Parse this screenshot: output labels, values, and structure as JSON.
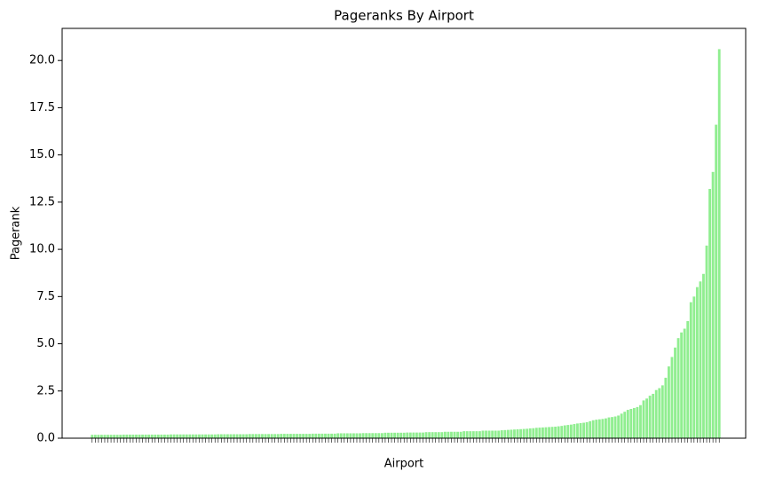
{
  "chart_data": {
    "type": "bar",
    "title": "Pageranks By Airport",
    "x_label": "Airport",
    "y_label": "Pagerank",
    "color": "#90ee90",
    "categories": [
      null,
      null,
      null,
      null,
      null,
      null,
      null,
      null,
      null,
      null,
      null,
      null,
      null,
      null,
      null,
      null,
      null,
      null,
      null,
      null,
      null,
      null,
      null,
      null,
      null,
      null,
      null,
      null,
      null,
      null,
      null,
      null,
      null,
      null,
      null,
      null,
      null,
      null,
      null,
      null,
      null,
      null,
      null,
      null,
      null,
      null,
      null,
      null,
      null,
      null,
      null,
      null,
      null,
      null,
      null,
      null,
      null,
      null,
      null,
      null,
      null,
      null,
      null,
      null,
      null,
      null,
      null,
      null,
      null,
      null,
      null,
      null,
      null,
      null,
      null,
      null,
      null,
      null,
      null,
      null,
      null,
      null,
      null,
      null,
      null,
      null,
      null,
      null,
      null,
      null,
      null,
      null,
      null,
      null,
      null,
      null,
      null,
      null,
      null,
      null,
      null,
      null,
      null,
      null,
      null,
      null,
      null,
      null,
      null,
      null,
      null,
      null,
      null,
      null,
      null,
      null,
      null,
      null,
      null,
      null,
      null,
      null,
      null,
      null,
      null,
      null,
      null,
      null,
      null,
      null,
      null,
      null,
      null,
      null,
      null,
      null,
      null,
      null,
      null,
      null,
      null,
      null,
      null,
      null,
      null,
      null,
      null,
      null,
      null,
      null,
      null,
      null,
      null,
      null,
      null,
      null,
      null,
      null,
      null,
      null,
      null,
      null,
      null,
      null,
      null,
      null,
      null,
      null,
      null,
      null,
      null,
      null,
      null,
      null,
      null,
      null,
      null,
      null,
      null,
      null,
      null,
      null,
      null,
      null,
      null,
      null,
      null,
      null,
      null,
      null,
      null,
      null,
      null,
      null,
      null,
      null,
      null,
      null,
      null,
      null
    ],
    "values": [
      0.18,
      0.18,
      0.18,
      0.18,
      0.18,
      0.18,
      0.18,
      0.18,
      0.18,
      0.18,
      0.19,
      0.19,
      0.19,
      0.19,
      0.19,
      0.19,
      0.19,
      0.19,
      0.19,
      0.19,
      0.19,
      0.19,
      0.19,
      0.19,
      0.19,
      0.2,
      0.2,
      0.2,
      0.2,
      0.2,
      0.2,
      0.2,
      0.2,
      0.2,
      0.2,
      0.2,
      0.2,
      0.2,
      0.2,
      0.2,
      0.21,
      0.21,
      0.21,
      0.21,
      0.21,
      0.21,
      0.21,
      0.21,
      0.21,
      0.21,
      0.22,
      0.22,
      0.22,
      0.22,
      0.22,
      0.22,
      0.22,
      0.22,
      0.22,
      0.22,
      0.23,
      0.23,
      0.23,
      0.23,
      0.23,
      0.23,
      0.23,
      0.23,
      0.23,
      0.23,
      0.24,
      0.24,
      0.24,
      0.24,
      0.24,
      0.24,
      0.24,
      0.24,
      0.26,
      0.26,
      0.26,
      0.26,
      0.26,
      0.26,
      0.26,
      0.26,
      0.27,
      0.27,
      0.27,
      0.27,
      0.27,
      0.27,
      0.27,
      0.29,
      0.29,
      0.29,
      0.29,
      0.29,
      0.29,
      0.29,
      0.3,
      0.3,
      0.3,
      0.3,
      0.3,
      0.3,
      0.32,
      0.32,
      0.32,
      0.32,
      0.32,
      0.32,
      0.34,
      0.34,
      0.34,
      0.34,
      0.34,
      0.34,
      0.37,
      0.37,
      0.37,
      0.37,
      0.37,
      0.37,
      0.4,
      0.4,
      0.4,
      0.4,
      0.4,
      0.4,
      0.42,
      0.43,
      0.44,
      0.45,
      0.46,
      0.47,
      0.48,
      0.49,
      0.5,
      0.52,
      0.53,
      0.55,
      0.56,
      0.57,
      0.58,
      0.59,
      0.6,
      0.61,
      0.63,
      0.65,
      0.68,
      0.7,
      0.72,
      0.75,
      0.78,
      0.8,
      0.82,
      0.85,
      0.9,
      0.95,
      0.98,
      1.0,
      1.02,
      1.05,
      1.1,
      1.12,
      1.15,
      1.2,
      1.3,
      1.4,
      1.5,
      1.55,
      1.6,
      1.65,
      1.75,
      2.0,
      2.1,
      2.25,
      2.35,
      2.55,
      2.65,
      2.8,
      3.2,
      3.8,
      4.3,
      4.8,
      5.3,
      5.6,
      5.8,
      6.2,
      7.2,
      7.5,
      8.0,
      8.3,
      8.7,
      10.2,
      13.2,
      14.1,
      16.6,
      20.6
    ],
    "ylim": [
      0,
      21.7
    ],
    "yticks": [
      {
        "value": 0,
        "label": "0.0"
      },
      2.5,
      {
        "value": 5,
        "label": "5.0"
      },
      7.5,
      {
        "value": 10,
        "label": "10.0"
      },
      12.5,
      {
        "value": 15,
        "label": "15.0"
      },
      17.5,
      {
        "value": 20,
        "label": "20.0"
      }
    ],
    "grid": false
  }
}
